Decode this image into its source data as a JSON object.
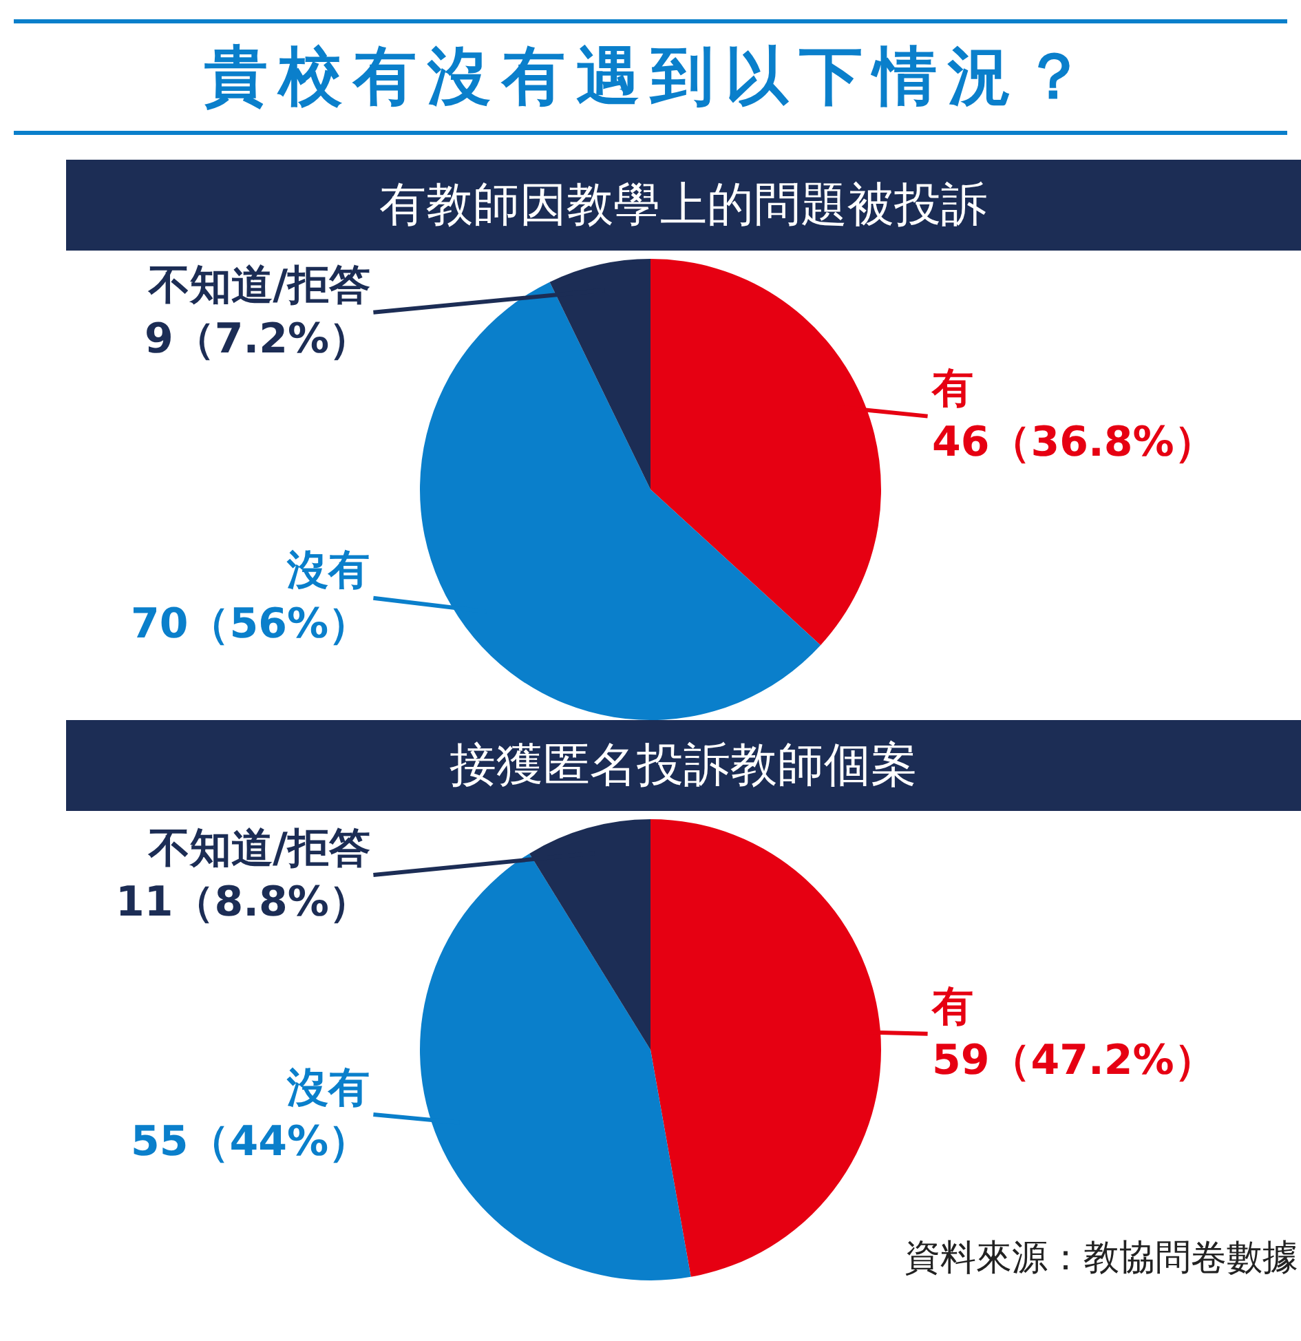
{
  "chart_data": [
    {
      "type": "pie",
      "title": "貴校有沒有遇到以下情況？",
      "subtitle": "有教師因教學上的問題被投訴",
      "categories": [
        "有",
        "沒有",
        "不知道/拒答"
      ],
      "values": [
        46,
        70,
        9
      ],
      "colors": [
        "#e60012",
        "#0a7fcb",
        "#1c2d55"
      ],
      "value_labels": [
        "46（36.8%）",
        "70（56%）",
        "9（7.2%）"
      ]
    },
    {
      "type": "pie",
      "title": "接獲匿名投訴教師個案",
      "categories": [
        "有",
        "沒有",
        "不知道/拒答"
      ],
      "values": [
        59,
        55,
        11
      ],
      "colors": [
        "#e60012",
        "#0a7fcb",
        "#1c2d55"
      ],
      "value_labels": [
        "59（47.2%）",
        "55（44%）",
        "11（8.8%）"
      ],
      "annotations": [
        "資料來源：教協問卷數據"
      ]
    }
  ]
}
